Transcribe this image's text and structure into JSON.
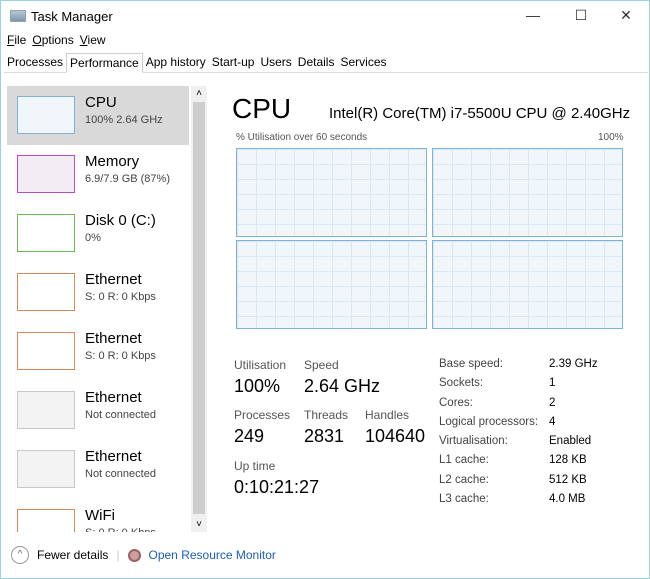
{
  "window": {
    "title": "Task Manager",
    "minimize": "—",
    "maximize": "☐",
    "close": "✕"
  },
  "menu": [
    "File",
    "Options",
    "View"
  ],
  "tabs": [
    "Processes",
    "Performance",
    "App history",
    "Start-up",
    "Users",
    "Details",
    "Services"
  ],
  "active_tab": "Performance",
  "sidebar": [
    {
      "name": "CPU",
      "sub": "100%  2.64 GHz",
      "color": "#7fb2d8",
      "bg": "#f1f6fb"
    },
    {
      "name": "Memory",
      "sub": "6.9/7.9 GB (87%)",
      "color": "#b44fc0",
      "bg": "#f4ecf5"
    },
    {
      "name": "Disk 0 (C:)",
      "sub": "0%",
      "color": "#6db95a",
      "bg": "#fff"
    },
    {
      "name": "Ethernet",
      "sub": "S: 0  R: 0 Kbps",
      "color": "#d38a5c",
      "bg": "#fff"
    },
    {
      "name": "Ethernet",
      "sub": "S: 0  R: 0 Kbps",
      "color": "#d38a5c",
      "bg": "#fff"
    },
    {
      "name": "Ethernet",
      "sub": "Not connected",
      "color": "#c8c8c8",
      "bg": "#f3f3f3"
    },
    {
      "name": "Ethernet",
      "sub": "Not connected",
      "color": "#c8c8c8",
      "bg": "#f3f3f3"
    },
    {
      "name": "WiFi",
      "sub": "S: 0  R: 0 Kbps",
      "color": "#d38a5c",
      "bg": "#fff"
    }
  ],
  "main": {
    "title": "CPU",
    "model": "Intel(R) Core(TM) i7-5500U CPU @ 2.40GHz",
    "graph_label": "% Utilisation over 60 seconds",
    "graph_max": "100%",
    "stats": {
      "utilisation_label": "Utilisation",
      "utilisation": "100%",
      "speed_label": "Speed",
      "speed": "2.64 GHz",
      "processes_label": "Processes",
      "processes": "249",
      "threads_label": "Threads",
      "threads": "2831",
      "handles_label": "Handles",
      "handles": "104640",
      "uptime_label": "Up time",
      "uptime": "0:10:21:27"
    },
    "specs": [
      {
        "k": "Base speed:",
        "v": "2.39 GHz"
      },
      {
        "k": "Sockets:",
        "v": "1"
      },
      {
        "k": "Cores:",
        "v": "2"
      },
      {
        "k": "Logical processors:",
        "v": "4"
      },
      {
        "k": "Virtualisation:",
        "v": "Enabled"
      },
      {
        "k": "L1 cache:",
        "v": "128 KB"
      },
      {
        "k": "L2 cache:",
        "v": "512 KB"
      },
      {
        "k": "L3 cache:",
        "v": "4.0 MB"
      }
    ]
  },
  "footer": {
    "fewer": "Fewer details",
    "monitor": "Open Resource Monitor"
  }
}
